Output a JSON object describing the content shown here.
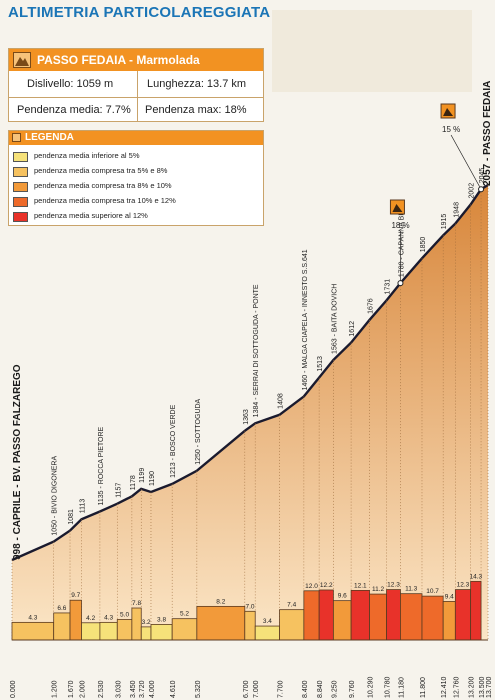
{
  "header": {
    "title": "ALTIMETRIA PARTICOLAREGGIATA"
  },
  "info": {
    "title": "PASSO FEDAIA - Marmolada",
    "dislivello": "Dislivello: 1059 m",
    "lunghezza": "Lunghezza: 13.7 km",
    "pendenza_media": "Pendenza media: 7.7%",
    "pendenza_max": "Pendenza max: 18%"
  },
  "legend": {
    "title": "LEGENDA",
    "items": [
      {
        "label": "pendenza media inferiore al 5%",
        "color": "#f6e27a"
      },
      {
        "label": "pendenza media compresa tra 5% e 8%",
        "color": "#f6c260"
      },
      {
        "label": "pendenza media compresa tra 8% e 10%",
        "color": "#f29a3a"
      },
      {
        "label": "pendenza media compresa tra  10% e 12%",
        "color": "#ee6a2a"
      },
      {
        "label": "pendenza media superiore al 12%",
        "color": "#e8322a"
      }
    ]
  },
  "chart_data": {
    "type": "area",
    "title": "",
    "xlabel": "",
    "ylabel": "",
    "start_label": "998 - CAPRILE - BV. PASSO FALZAREGO",
    "end_label": "2057 - PASSO FEDAIA",
    "profile": [
      {
        "km": 0.0,
        "alt": 998
      },
      {
        "km": 1.2,
        "alt": 1050
      },
      {
        "km": 1.67,
        "alt": 1081
      },
      {
        "km": 2.0,
        "alt": 1113
      },
      {
        "km": 2.53,
        "alt": 1135
      },
      {
        "km": 3.03,
        "alt": 1157
      },
      {
        "km": 3.45,
        "alt": 1178
      },
      {
        "km": 3.72,
        "alt": 1199
      },
      {
        "km": 4.0,
        "alt": 1190
      },
      {
        "km": 4.61,
        "alt": 1213
      },
      {
        "km": 5.32,
        "alt": 1250
      },
      {
        "km": 6.7,
        "alt": 1363
      },
      {
        "km": 7.0,
        "alt": 1384
      },
      {
        "km": 7.7,
        "alt": 1408
      },
      {
        "km": 8.4,
        "alt": 1460
      },
      {
        "km": 8.84,
        "alt": 1513
      },
      {
        "km": 9.25,
        "alt": 1563
      },
      {
        "km": 9.76,
        "alt": 1612
      },
      {
        "km": 10.29,
        "alt": 1676
      },
      {
        "km": 10.78,
        "alt": 1731
      },
      {
        "km": 11.18,
        "alt": 1780
      },
      {
        "km": 11.8,
        "alt": 1850
      },
      {
        "km": 12.41,
        "alt": 1915
      },
      {
        "km": 12.76,
        "alt": 1948
      },
      {
        "km": 13.2,
        "alt": 2002
      },
      {
        "km": 13.5,
        "alt": 2045
      },
      {
        "km": 13.7,
        "alt": 2057
      }
    ],
    "altitude_labels": [
      {
        "km": 1.2,
        "text": "1050 - BIVIO DIGONERA"
      },
      {
        "km": 1.67,
        "text": "1081"
      },
      {
        "km": 2.0,
        "text": "1113"
      },
      {
        "km": 2.53,
        "text": "1135 - ROCCA PIETORE"
      },
      {
        "km": 3.03,
        "text": "1157"
      },
      {
        "km": 3.45,
        "text": "1178"
      },
      {
        "km": 3.72,
        "text": "1199"
      },
      {
        "km": 4.0,
        "text": "1190"
      },
      {
        "km": 4.61,
        "text": "1213 - BOSCO VERDE"
      },
      {
        "km": 5.32,
        "text": "1250 - SOTTOGUDA"
      },
      {
        "km": 6.7,
        "text": "1363"
      },
      {
        "km": 7.0,
        "text": "1384 - SERRAI DI SOTTOGUDA - PONTE"
      },
      {
        "km": 7.7,
        "text": "1408"
      },
      {
        "km": 8.4,
        "text": "1460 - MALGA CIAPELA - INNESTO S.S.641"
      },
      {
        "km": 8.84,
        "text": "1513"
      },
      {
        "km": 9.25,
        "text": "1563 - BAITA DOVICH"
      },
      {
        "km": 9.76,
        "text": "1612"
      },
      {
        "km": 10.29,
        "text": "1676"
      },
      {
        "km": 10.78,
        "text": "1731"
      },
      {
        "km": 11.18,
        "text": "1780 - CAPANNA BILL"
      },
      {
        "km": 11.8,
        "text": "1850"
      },
      {
        "km": 12.41,
        "text": "1915"
      },
      {
        "km": 12.76,
        "text": "1948"
      },
      {
        "km": 13.2,
        "text": "2002"
      },
      {
        "km": 13.5,
        "text": "2045"
      }
    ],
    "km_ticks": [
      "0.000",
      "1.200",
      "1.670",
      "2.000",
      "2.530",
      "3.030",
      "3.450",
      "3.720",
      "4.000",
      "4.610",
      "5.320",
      "6.700",
      "7.000",
      "7.700",
      "8.400",
      "8.840",
      "9.250",
      "9.760",
      "10.290",
      "10.780",
      "11.180",
      "11.800",
      "12.410",
      "12.760",
      "13.200",
      "13.500",
      "13.700"
    ],
    "gradient_segments": [
      {
        "from": 0.0,
        "to": 1.2,
        "grade": "4.3",
        "color": "#f6c260"
      },
      {
        "from": 1.2,
        "to": 1.67,
        "grade": "6.6",
        "color": "#f6c260"
      },
      {
        "from": 1.67,
        "to": 2.0,
        "grade": "9.7",
        "color": "#f29a3a"
      },
      {
        "from": 2.0,
        "to": 2.53,
        "grade": "4.2",
        "color": "#f6e27a"
      },
      {
        "from": 2.53,
        "to": 3.03,
        "grade": "4.3",
        "color": "#f6e27a"
      },
      {
        "from": 3.03,
        "to": 3.45,
        "grade": "5.0",
        "color": "#f6c260"
      },
      {
        "from": 3.45,
        "to": 3.72,
        "grade": "7.8",
        "color": "#f6c260"
      },
      {
        "from": 3.72,
        "to": 4.0,
        "grade": "3.2",
        "color": "#f6e27a"
      },
      {
        "from": 4.0,
        "to": 4.61,
        "grade": "3.8",
        "color": "#f6e27a"
      },
      {
        "from": 4.61,
        "to": 5.32,
        "grade": "5.2",
        "color": "#f6c260"
      },
      {
        "from": 5.32,
        "to": 6.7,
        "grade": "8.2",
        "color": "#f29a3a"
      },
      {
        "from": 6.7,
        "to": 7.0,
        "grade": "7.0",
        "color": "#f6c260"
      },
      {
        "from": 7.0,
        "to": 7.7,
        "grade": "3.4",
        "color": "#f6e27a"
      },
      {
        "from": 7.7,
        "to": 8.4,
        "grade": "7.4",
        "color": "#f6c260"
      },
      {
        "from": 8.4,
        "to": 8.84,
        "grade": "12.0",
        "color": "#ee6a2a"
      },
      {
        "from": 8.84,
        "to": 9.25,
        "grade": "12.2",
        "color": "#e8322a"
      },
      {
        "from": 9.25,
        "to": 9.76,
        "grade": "9.6",
        "color": "#f29a3a"
      },
      {
        "from": 9.76,
        "to": 10.29,
        "grade": "12.1",
        "color": "#e8322a"
      },
      {
        "from": 10.29,
        "to": 10.78,
        "grade": "11.2",
        "color": "#ee6a2a"
      },
      {
        "from": 10.78,
        "to": 11.18,
        "grade": "12.3",
        "color": "#e8322a"
      },
      {
        "from": 11.18,
        "to": 11.8,
        "grade": "11.3",
        "color": "#ee6a2a"
      },
      {
        "from": 11.8,
        "to": 12.41,
        "grade": "10.7",
        "color": "#ee6a2a"
      },
      {
        "from": 12.41,
        "to": 12.76,
        "grade": "9.4",
        "color": "#f29a3a"
      },
      {
        "from": 12.76,
        "to": 13.2,
        "grade": "12.3",
        "color": "#e8322a"
      },
      {
        "from": 13.2,
        "to": 13.5,
        "grade": "14.3",
        "color": "#e8322a"
      }
    ],
    "max_grade_markers": [
      {
        "km": 11.18,
        "text": "18 %"
      },
      {
        "km": 13.5,
        "text": "15 %"
      }
    ],
    "grid": false
  }
}
